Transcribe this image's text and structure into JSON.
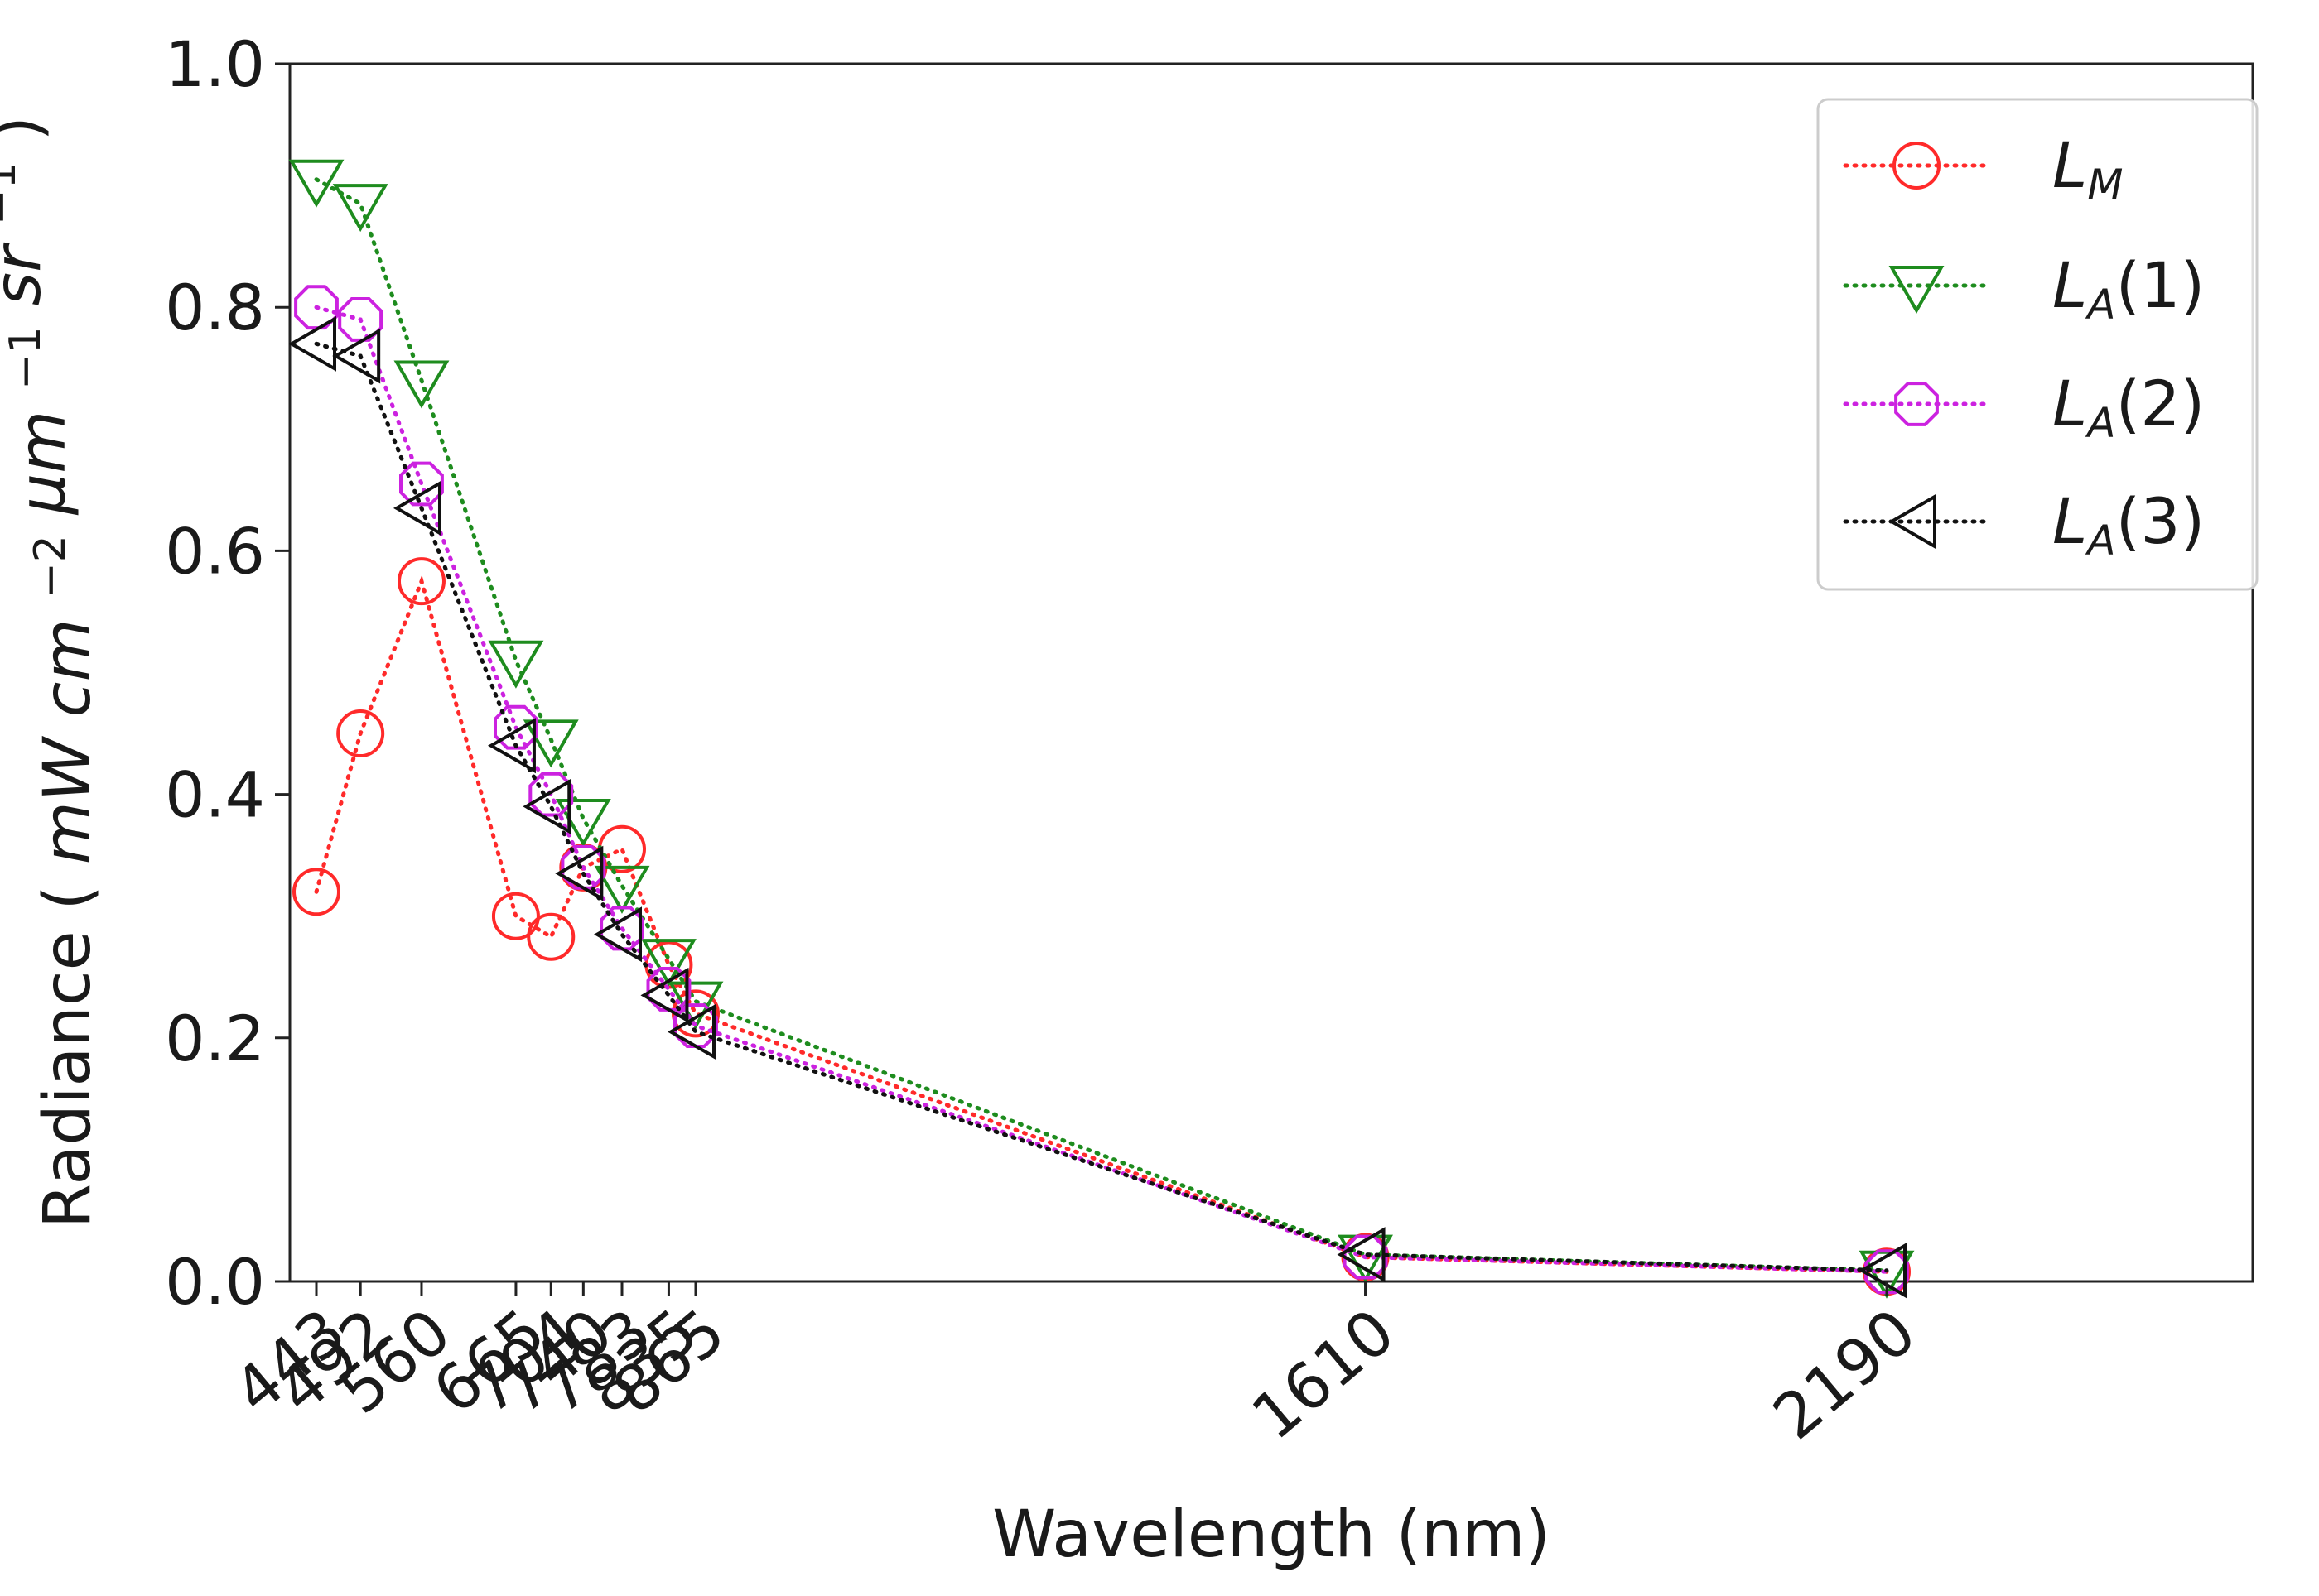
{
  "chart_data": {
    "type": "line",
    "title": "",
    "xlabel": "Wavelength (nm)",
    "ylabel": {
      "prefix": "Radiance (",
      "mw": "mW",
      "cm": "cm",
      "cm_exp": "−2",
      "um": "μm",
      "um_exp": "−1",
      "sr": "sr",
      "sr_exp": "−1",
      "suffix": ")"
    },
    "categories": [
      "443",
      "492",
      "560",
      "665",
      "704",
      "740",
      "783",
      "835",
      "865",
      "1610",
      "2190"
    ],
    "x": [
      443,
      492,
      560,
      665,
      704,
      740,
      783,
      835,
      865,
      1610,
      2190
    ],
    "ylim": [
      0.0,
      1.0
    ],
    "yticks": [
      "0.0",
      "0.2",
      "0.4",
      "0.6",
      "0.8",
      "1.0"
    ],
    "ytick_values": [
      0.0,
      0.2,
      0.4,
      0.6,
      0.8,
      1.0
    ],
    "legend_position": "top-right",
    "series": [
      {
        "name": "L_M",
        "label_main": "L",
        "label_sub": "M",
        "label_rest": "",
        "color": "#ff2a2a",
        "marker": "circle",
        "values": [
          0.32,
          0.45,
          0.575,
          0.3,
          0.283,
          0.34,
          0.355,
          0.26,
          0.22,
          0.02,
          0.008
        ]
      },
      {
        "name": "L_A(1)",
        "label_main": "L",
        "label_sub": "A",
        "label_rest": "(1)",
        "color": "#1e8c1e",
        "marker": "triangle-down",
        "values": [
          0.905,
          0.885,
          0.74,
          0.51,
          0.445,
          0.38,
          0.325,
          0.265,
          0.23,
          0.022,
          0.009
        ]
      },
      {
        "name": "L_A(2)",
        "label_main": "L",
        "label_sub": "A",
        "label_rest": "(2)",
        "color": "#cc22e0",
        "marker": "octagon",
        "values": [
          0.8,
          0.79,
          0.655,
          0.455,
          0.4,
          0.34,
          0.29,
          0.24,
          0.21,
          0.02,
          0.008
        ]
      },
      {
        "name": "L_A(3)",
        "label_main": "L",
        "label_sub": "A",
        "label_rest": "(3)",
        "color": "#111111",
        "marker": "triangle-left",
        "values": [
          0.77,
          0.76,
          0.635,
          0.44,
          0.39,
          0.335,
          0.285,
          0.235,
          0.205,
          0.022,
          0.009
        ]
      }
    ]
  }
}
